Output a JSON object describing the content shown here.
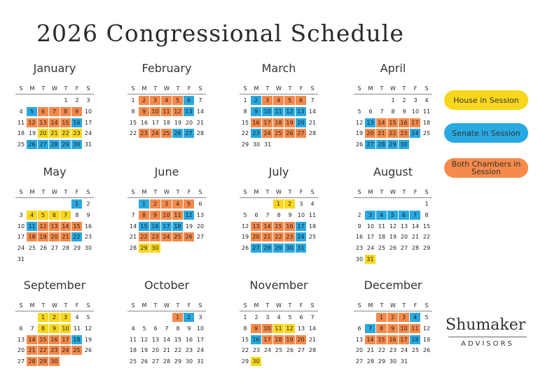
{
  "title": "2026 Congressional Schedule",
  "weekdays": [
    "S",
    "M",
    "T",
    "W",
    "T",
    "F",
    "S"
  ],
  "legend": [
    {
      "label": "House in Session",
      "color": "#f9d71c"
    },
    {
      "label": "Senate in Session",
      "color": "#29a9e1"
    },
    {
      "label": "Both Chambers in Session",
      "color": "#f58a4b"
    }
  ],
  "logo": {
    "name": "Shumaker",
    "tagline": "ADVISORS"
  },
  "months": [
    {
      "name": "January",
      "weeks": [
        [
          null,
          null,
          null,
          null,
          1,
          2,
          3
        ],
        [
          4,
          {
            "day": 5,
            "color": "#29a9e1"
          },
          {
            "day": 6,
            "color": "#f58a4b"
          },
          {
            "day": 7,
            "color": "#f58a4b"
          },
          {
            "day": 8,
            "color": "#f58a4b"
          },
          {
            "day": 9,
            "color": "#f58a4b"
          },
          10
        ],
        [
          11,
          {
            "day": 12,
            "color": "#f58a4b"
          },
          {
            "day": 13,
            "color": "#f58a4b"
          },
          {
            "day": 14,
            "color": "#f58a4b"
          },
          {
            "day": 15,
            "color": "#f58a4b"
          },
          {
            "day": 16,
            "color": "#29a9e1"
          },
          17
        ],
        [
          18,
          19,
          {
            "day": 20,
            "color": "#f9d71c"
          },
          {
            "day": 21,
            "color": "#f9d71c"
          },
          {
            "day": 22,
            "color": "#f9d71c"
          },
          {
            "day": 23,
            "color": "#f9d71c"
          },
          24
        ],
        [
          25,
          {
            "day": 26,
            "color": "#29a9e1"
          },
          {
            "day": 27,
            "color": "#29a9e1"
          },
          {
            "day": 28,
            "color": "#29a9e1"
          },
          {
            "day": 29,
            "color": "#29a9e1"
          },
          {
            "day": 30,
            "color": "#29a9e1"
          },
          31
        ]
      ]
    },
    {
      "name": "February",
      "weeks": [
        [
          1,
          {
            "day": 2,
            "color": "#f58a4b"
          },
          {
            "day": 3,
            "color": "#f58a4b"
          },
          {
            "day": 4,
            "color": "#f58a4b"
          },
          {
            "day": 5,
            "color": "#f58a4b"
          },
          {
            "day": 6,
            "color": "#29a9e1"
          },
          7
        ],
        [
          8,
          {
            "day": 9,
            "color": "#f58a4b"
          },
          {
            "day": 10,
            "color": "#f58a4b"
          },
          {
            "day": 11,
            "color": "#f58a4b"
          },
          {
            "day": 12,
            "color": "#f58a4b"
          },
          {
            "day": 13,
            "color": "#29a9e1"
          },
          14
        ],
        [
          15,
          16,
          17,
          18,
          19,
          20,
          21
        ],
        [
          22,
          {
            "day": 23,
            "color": "#f58a4b"
          },
          {
            "day": 24,
            "color": "#f58a4b"
          },
          {
            "day": 25,
            "color": "#f58a4b"
          },
          {
            "day": 26,
            "color": "#29a9e1"
          },
          {
            "day": 27,
            "color": "#29a9e1"
          },
          28
        ]
      ]
    },
    {
      "name": "March",
      "weeks": [
        [
          1,
          {
            "day": 2,
            "color": "#29a9e1"
          },
          {
            "day": 3,
            "color": "#f58a4b"
          },
          {
            "day": 4,
            "color": "#f58a4b"
          },
          {
            "day": 5,
            "color": "#f58a4b"
          },
          {
            "day": 6,
            "color": "#f58a4b"
          },
          7
        ],
        [
          8,
          {
            "day": 9,
            "color": "#29a9e1"
          },
          {
            "day": 10,
            "color": "#29a9e1"
          },
          {
            "day": 11,
            "color": "#29a9e1"
          },
          {
            "day": 12,
            "color": "#29a9e1"
          },
          {
            "day": 13,
            "color": "#29a9e1"
          },
          14
        ],
        [
          15,
          {
            "day": 16,
            "color": "#f58a4b"
          },
          {
            "day": 17,
            "color": "#f58a4b"
          },
          {
            "day": 18,
            "color": "#f58a4b"
          },
          {
            "day": 19,
            "color": "#f58a4b"
          },
          {
            "day": 20,
            "color": "#29a9e1"
          },
          21
        ],
        [
          22,
          {
            "day": 23,
            "color": "#29a9e1"
          },
          {
            "day": 24,
            "color": "#f58a4b"
          },
          {
            "day": 25,
            "color": "#f58a4b"
          },
          {
            "day": 26,
            "color": "#f58a4b"
          },
          {
            "day": 27,
            "color": "#f58a4b"
          },
          28
        ],
        [
          29,
          30,
          31,
          null,
          null,
          null,
          null
        ]
      ]
    },
    {
      "name": "April",
      "weeks": [
        [
          null,
          null,
          null,
          1,
          2,
          3,
          4
        ],
        [
          5,
          6,
          7,
          8,
          9,
          10,
          11
        ],
        [
          12,
          {
            "day": 13,
            "color": "#29a9e1"
          },
          {
            "day": 14,
            "color": "#f58a4b"
          },
          {
            "day": 15,
            "color": "#f58a4b"
          },
          {
            "day": 16,
            "color": "#f58a4b"
          },
          {
            "day": 17,
            "color": "#f58a4b"
          },
          18
        ],
        [
          19,
          {
            "day": 20,
            "color": "#f58a4b"
          },
          {
            "day": 21,
            "color": "#f58a4b"
          },
          {
            "day": 22,
            "color": "#f58a4b"
          },
          {
            "day": 23,
            "color": "#f58a4b"
          },
          {
            "day": 24,
            "color": "#29a9e1"
          },
          25
        ],
        [
          26,
          {
            "day": 27,
            "color": "#29a9e1"
          },
          {
            "day": 28,
            "color": "#29a9e1"
          },
          {
            "day": 29,
            "color": "#29a9e1"
          },
          {
            "day": 30,
            "color": "#29a9e1"
          },
          null,
          null
        ]
      ]
    },
    {
      "name": "May",
      "weeks": [
        [
          null,
          null,
          null,
          null,
          null,
          {
            "day": 1,
            "color": "#29a9e1"
          },
          2
        ],
        [
          3,
          {
            "day": 4,
            "color": "#f9d71c"
          },
          {
            "day": 5,
            "color": "#f9d71c"
          },
          {
            "day": 6,
            "color": "#f9d71c"
          },
          {
            "day": 7,
            "color": "#f9d71c"
          },
          8,
          9
        ],
        [
          10,
          {
            "day": 11,
            "color": "#29a9e1"
          },
          {
            "day": 12,
            "color": "#f58a4b"
          },
          {
            "day": 13,
            "color": "#f58a4b"
          },
          {
            "day": 14,
            "color": "#f58a4b"
          },
          {
            "day": 15,
            "color": "#f58a4b"
          },
          16
        ],
        [
          17,
          {
            "day": 18,
            "color": "#f58a4b"
          },
          {
            "day": 19,
            "color": "#f58a4b"
          },
          {
            "day": 20,
            "color": "#f58a4b"
          },
          {
            "day": 21,
            "color": "#f58a4b"
          },
          {
            "day": 22,
            "color": "#29a9e1"
          },
          23
        ],
        [
          24,
          25,
          26,
          27,
          28,
          29,
          30
        ],
        [
          31,
          null,
          null,
          null,
          null,
          null,
          null
        ]
      ]
    },
    {
      "name": "June",
      "weeks": [
        [
          null,
          {
            "day": 1,
            "color": "#29a9e1"
          },
          {
            "day": 2,
            "color": "#f58a4b"
          },
          {
            "day": 3,
            "color": "#f58a4b"
          },
          {
            "day": 4,
            "color": "#f58a4b"
          },
          {
            "day": 5,
            "color": "#f58a4b"
          },
          6
        ],
        [
          7,
          {
            "day": 8,
            "color": "#f58a4b"
          },
          {
            "day": 9,
            "color": "#f58a4b"
          },
          {
            "day": 10,
            "color": "#f58a4b"
          },
          {
            "day": 11,
            "color": "#f58a4b"
          },
          {
            "day": 12,
            "color": "#29a9e1"
          },
          13
        ],
        [
          14,
          {
            "day": 15,
            "color": "#29a9e1"
          },
          {
            "day": 16,
            "color": "#29a9e1"
          },
          {
            "day": 17,
            "color": "#29a9e1"
          },
          {
            "day": 18,
            "color": "#29a9e1"
          },
          19,
          20
        ],
        [
          21,
          {
            "day": 22,
            "color": "#f58a4b"
          },
          {
            "day": 23,
            "color": "#f58a4b"
          },
          {
            "day": 24,
            "color": "#f58a4b"
          },
          {
            "day": 25,
            "color": "#f58a4b"
          },
          {
            "day": 26,
            "color": "#f58a4b"
          },
          27
        ],
        [
          28,
          {
            "day": 29,
            "color": "#f9d71c"
          },
          {
            "day": 30,
            "color": "#f9d71c"
          },
          null,
          null,
          null,
          null
        ]
      ]
    },
    {
      "name": "July",
      "weeks": [
        [
          null,
          null,
          null,
          {
            "day": 1,
            "color": "#f9d71c"
          },
          {
            "day": 2,
            "color": "#f9d71c"
          },
          3,
          4
        ],
        [
          5,
          6,
          7,
          8,
          9,
          10,
          11
        ],
        [
          12,
          {
            "day": 13,
            "color": "#f58a4b"
          },
          {
            "day": 14,
            "color": "#f58a4b"
          },
          {
            "day": 15,
            "color": "#f58a4b"
          },
          {
            "day": 16,
            "color": "#f58a4b"
          },
          {
            "day": 17,
            "color": "#29a9e1"
          },
          18
        ],
        [
          19,
          {
            "day": 20,
            "color": "#f58a4b"
          },
          {
            "day": 21,
            "color": "#f58a4b"
          },
          {
            "day": 22,
            "color": "#f58a4b"
          },
          {
            "day": 23,
            "color": "#f58a4b"
          },
          {
            "day": 24,
            "color": "#29a9e1"
          },
          25
        ],
        [
          26,
          {
            "day": 27,
            "color": "#29a9e1"
          },
          {
            "day": 28,
            "color": "#29a9e1"
          },
          {
            "day": 29,
            "color": "#29a9e1"
          },
          {
            "day": 30,
            "color": "#29a9e1"
          },
          {
            "day": 31,
            "color": "#29a9e1"
          },
          null
        ]
      ]
    },
    {
      "name": "August",
      "weeks": [
        [
          null,
          null,
          null,
          null,
          null,
          null,
          1
        ],
        [
          2,
          {
            "day": 3,
            "color": "#29a9e1"
          },
          {
            "day": 4,
            "color": "#29a9e1"
          },
          {
            "day": 5,
            "color": "#29a9e1"
          },
          {
            "day": 6,
            "color": "#29a9e1"
          },
          {
            "day": 7,
            "color": "#29a9e1"
          },
          8
        ],
        [
          9,
          10,
          11,
          12,
          13,
          14,
          15
        ],
        [
          16,
          17,
          18,
          19,
          20,
          21,
          22
        ],
        [
          23,
          24,
          25,
          26,
          27,
          28,
          29
        ],
        [
          30,
          {
            "day": 31,
            "color": "#f9d71c"
          },
          null,
          null,
          null,
          null,
          null
        ]
      ]
    },
    {
      "name": "September",
      "weeks": [
        [
          null,
          null,
          {
            "day": 1,
            "color": "#f9d71c"
          },
          {
            "day": 2,
            "color": "#f9d71c"
          },
          {
            "day": 3,
            "color": "#f9d71c"
          },
          4,
          5
        ],
        [
          6,
          7,
          {
            "day": 8,
            "color": "#f9d71c"
          },
          {
            "day": 9,
            "color": "#f9d71c"
          },
          {
            "day": 10,
            "color": "#f9d71c"
          },
          11,
          12
        ],
        [
          13,
          {
            "day": 14,
            "color": "#f58a4b"
          },
          {
            "day": 15,
            "color": "#f58a4b"
          },
          {
            "day": 16,
            "color": "#f58a4b"
          },
          {
            "day": 17,
            "color": "#f58a4b"
          },
          {
            "day": 18,
            "color": "#29a9e1"
          },
          19
        ],
        [
          20,
          {
            "day": 21,
            "color": "#f58a4b"
          },
          {
            "day": 22,
            "color": "#f58a4b"
          },
          {
            "day": 23,
            "color": "#f58a4b"
          },
          {
            "day": 24,
            "color": "#f58a4b"
          },
          {
            "day": 25,
            "color": "#f58a4b"
          },
          26
        ],
        [
          27,
          {
            "day": 28,
            "color": "#f58a4b"
          },
          {
            "day": 29,
            "color": "#f58a4b"
          },
          {
            "day": 30,
            "color": "#f58a4b"
          },
          null,
          null,
          null
        ]
      ]
    },
    {
      "name": "October",
      "weeks": [
        [
          null,
          null,
          null,
          null,
          {
            "day": 1,
            "color": "#f58a4b"
          },
          {
            "day": 2,
            "color": "#29a9e1"
          },
          3
        ],
        [
          4,
          5,
          6,
          7,
          8,
          9,
          10
        ],
        [
          11,
          12,
          13,
          14,
          15,
          16,
          17
        ],
        [
          18,
          19,
          20,
          21,
          22,
          23,
          24
        ],
        [
          25,
          26,
          27,
          28,
          29,
          30,
          31
        ]
      ]
    },
    {
      "name": "November",
      "weeks": [
        [
          1,
          2,
          3,
          4,
          5,
          6,
          7
        ],
        [
          8,
          {
            "day": 9,
            "color": "#f58a4b"
          },
          {
            "day": 10,
            "color": "#f58a4b"
          },
          {
            "day": 11,
            "color": "#f9d71c"
          },
          {
            "day": 12,
            "color": "#f9d71c"
          },
          13,
          14
        ],
        [
          15,
          {
            "day": 16,
            "color": "#29a9e1"
          },
          {
            "day": 17,
            "color": "#f58a4b"
          },
          {
            "day": 18,
            "color": "#f58a4b"
          },
          {
            "day": 19,
            "color": "#f58a4b"
          },
          {
            "day": 20,
            "color": "#f58a4b"
          },
          21
        ],
        [
          22,
          23,
          24,
          25,
          26,
          27,
          28
        ],
        [
          29,
          {
            "day": 30,
            "color": "#f9d71c"
          },
          null,
          null,
          null,
          null,
          null
        ]
      ]
    },
    {
      "name": "December",
      "weeks": [
        [
          null,
          null,
          {
            "day": 1,
            "color": "#f58a4b"
          },
          {
            "day": 2,
            "color": "#f58a4b"
          },
          {
            "day": 3,
            "color": "#f58a4b"
          },
          {
            "day": 4,
            "color": "#29a9e1"
          },
          5
        ],
        [
          6,
          {
            "day": 7,
            "color": "#29a9e1"
          },
          {
            "day": 8,
            "color": "#f58a4b"
          },
          {
            "day": 9,
            "color": "#f58a4b"
          },
          {
            "day": 10,
            "color": "#f58a4b"
          },
          {
            "day": 11,
            "color": "#f58a4b"
          },
          12
        ],
        [
          13,
          {
            "day": 14,
            "color": "#f58a4b"
          },
          {
            "day": 15,
            "color": "#f58a4b"
          },
          {
            "day": 16,
            "color": "#f58a4b"
          },
          {
            "day": 17,
            "color": "#f58a4b"
          },
          {
            "day": 18,
            "color": "#29a9e1"
          },
          19
        ],
        [
          20,
          21,
          22,
          23,
          24,
          25,
          26
        ],
        [
          27,
          28,
          29,
          30,
          31,
          null,
          null
        ]
      ]
    }
  ]
}
